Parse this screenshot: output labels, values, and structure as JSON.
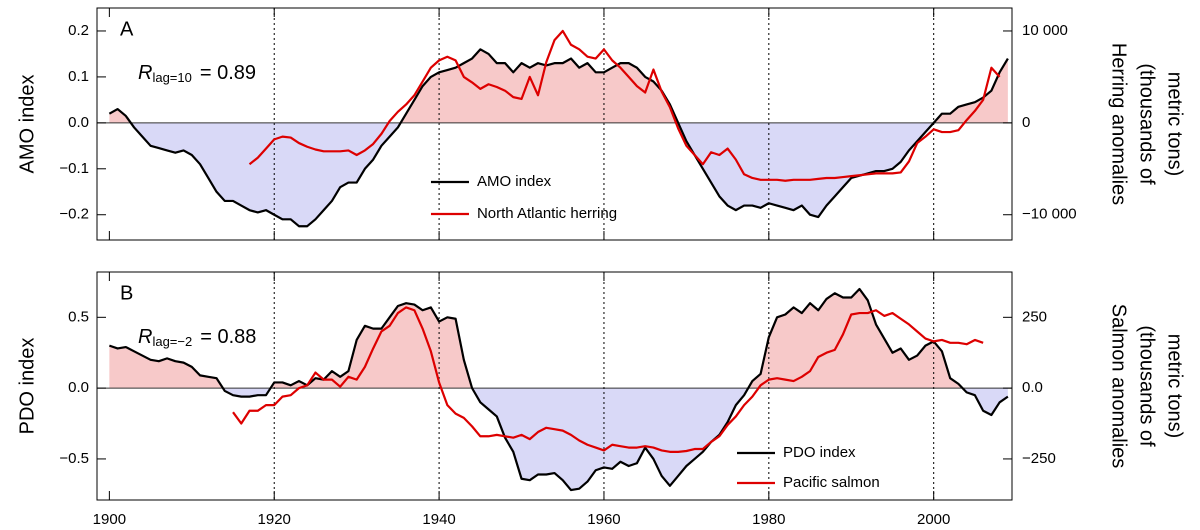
{
  "chart_data": [
    {
      "type": "line",
      "panel_letter": "A",
      "annotation": {
        "symbol": "R",
        "subscript": "lag=10",
        "text": "= 0.89"
      },
      "ylabel": "AMO index",
      "y2label": [
        "Herring anomalies",
        "(thousands of",
        "metric tons)"
      ],
      "xlim": [
        1898.5,
        2009.5
      ],
      "xticks": [
        1900,
        1920,
        1940,
        1960,
        1980,
        2000
      ],
      "show_xtick_labels": false,
      "vlines": [
        1920,
        1940,
        1960,
        1980,
        2000
      ],
      "ylim": [
        -0.255,
        0.25
      ],
      "yticks": [
        {
          "value": -0.2,
          "label": "−0.2"
        },
        {
          "value": -0.1,
          "label": "−0.1"
        },
        {
          "value": 0,
          "label": "0.0"
        },
        0.1,
        0.2
      ],
      "y2lim": [
        -12750,
        12500
      ],
      "y2ticks": [
        {
          "value": -10000,
          "label": "−10 000"
        },
        0,
        {
          "value": 10000,
          "label": "10 000"
        }
      ],
      "fill_colors": {
        "positive": "#f7c9c9",
        "negative": "#d9d9f7"
      },
      "legend": "lower center",
      "series": [
        {
          "name": "AMO index",
          "color": "#000000",
          "fill": true,
          "x": [
            1900,
            1901,
            1902,
            1903,
            1904,
            1905,
            1906,
            1907,
            1908,
            1909,
            1910,
            1911,
            1912,
            1913,
            1914,
            1915,
            1916,
            1917,
            1918,
            1919,
            1920,
            1921,
            1922,
            1923,
            1924,
            1925,
            1926,
            1927,
            1928,
            1929,
            1930,
            1931,
            1932,
            1933,
            1934,
            1935,
            1936,
            1937,
            1938,
            1939,
            1940,
            1941,
            1942,
            1943,
            1944,
            1945,
            1946,
            1947,
            1948,
            1949,
            1950,
            1951,
            1952,
            1953,
            1954,
            1955,
            1956,
            1957,
            1958,
            1959,
            1960,
            1961,
            1962,
            1963,
            1964,
            1965,
            1966,
            1967,
            1968,
            1969,
            1970,
            1971,
            1972,
            1973,
            1974,
            1975,
            1976,
            1977,
            1978,
            1979,
            1980,
            1981,
            1982,
            1983,
            1984,
            1985,
            1986,
            1987,
            1988,
            1989,
            1990,
            1991,
            1992,
            1993,
            1994,
            1995,
            1996,
            1997,
            1998,
            1999,
            2000,
            2001,
            2002,
            2003,
            2004,
            2005,
            2006,
            2007,
            2008,
            2009
          ],
          "values": [
            0.02,
            0.03,
            0.015,
            -0.01,
            -0.03,
            -0.05,
            -0.055,
            -0.06,
            -0.065,
            -0.06,
            -0.07,
            -0.09,
            -0.12,
            -0.15,
            -0.17,
            -0.17,
            -0.18,
            -0.19,
            -0.195,
            -0.19,
            -0.2,
            -0.21,
            -0.21,
            -0.225,
            -0.225,
            -0.21,
            -0.19,
            -0.17,
            -0.14,
            -0.13,
            -0.13,
            -0.1,
            -0.08,
            -0.05,
            -0.03,
            -0.01,
            0.02,
            0.05,
            0.08,
            0.1,
            0.11,
            0.115,
            0.12,
            0.13,
            0.14,
            0.16,
            0.15,
            0.13,
            0.13,
            0.11,
            0.13,
            0.12,
            0.13,
            0.125,
            0.13,
            0.13,
            0.14,
            0.12,
            0.13,
            0.11,
            0.11,
            0.12,
            0.13,
            0.13,
            0.12,
            0.1,
            0.09,
            0.07,
            0.04,
            0.0,
            -0.04,
            -0.07,
            -0.1,
            -0.13,
            -0.16,
            -0.18,
            -0.19,
            -0.18,
            -0.18,
            -0.185,
            -0.175,
            -0.18,
            -0.185,
            -0.19,
            -0.18,
            -0.2,
            -0.205,
            -0.18,
            -0.16,
            -0.14,
            -0.12,
            -0.115,
            -0.11,
            -0.105,
            -0.105,
            -0.1,
            -0.085,
            -0.06,
            -0.04,
            -0.02,
            0.0,
            0.02,
            0.02,
            0.035,
            0.04,
            0.045,
            0.055,
            0.07,
            0.11,
            0.14
          ]
        },
        {
          "name": "North Atlantic herring",
          "color": "#dd0000",
          "axis": "y2",
          "x": [
            1917,
            1918,
            1919,
            1920,
            1921,
            1922,
            1923,
            1924,
            1925,
            1926,
            1927,
            1928,
            1929,
            1930,
            1931,
            1932,
            1933,
            1934,
            1935,
            1936,
            1937,
            1938,
            1939,
            1940,
            1941,
            1942,
            1943,
            1944,
            1945,
            1946,
            1947,
            1948,
            1949,
            1950,
            1951,
            1952,
            1953,
            1954,
            1955,
            1956,
            1957,
            1958,
            1959,
            1960,
            1961,
            1962,
            1963,
            1964,
            1965,
            1966,
            1967,
            1968,
            1969,
            1970,
            1971,
            1972,
            1973,
            1974,
            1975,
            1976,
            1977,
            1978,
            1979,
            1980,
            1981,
            1982,
            1983,
            1984,
            1985,
            1986,
            1987,
            1988,
            1989,
            1990,
            1991,
            1992,
            1993,
            1994,
            1995,
            1996,
            1997,
            1998,
            1999,
            2000,
            2001,
            2002,
            2003,
            2004,
            2005,
            2006,
            2007,
            2008
          ],
          "values": [
            -4500,
            -3800,
            -2800,
            -1800,
            -1500,
            -1600,
            -2200,
            -2600,
            -2900,
            -3100,
            -3100,
            -3100,
            -3000,
            -3500,
            -3000,
            -2300,
            -1200,
            200,
            1200,
            2000,
            3000,
            4500,
            6000,
            6800,
            7200,
            6800,
            5000,
            4400,
            3700,
            4200,
            3900,
            3500,
            2800,
            2600,
            5000,
            3000,
            6600,
            9000,
            10000,
            8500,
            8000,
            7200,
            7000,
            8000,
            6800,
            6000,
            5000,
            4000,
            3300,
            5800,
            3400,
            1700,
            -600,
            -2500,
            -3500,
            -4500,
            -3200,
            -3500,
            -2800,
            -4000,
            -5600,
            -6000,
            -6200,
            -6200,
            -6200,
            -6300,
            -6200,
            -6200,
            -6200,
            -6100,
            -6000,
            -6000,
            -5900,
            -5800,
            -5700,
            -5600,
            -5500,
            -5500,
            -5500,
            -5400,
            -4200,
            -2200,
            -1500,
            -700,
            -1000,
            -1000,
            -800,
            300,
            1300,
            2500,
            6000,
            5000
          ]
        }
      ]
    },
    {
      "type": "line",
      "panel_letter": "B",
      "annotation": {
        "symbol": "R",
        "subscript": "lag=−2",
        "text": "= 0.88"
      },
      "ylabel": "PDO index",
      "y2label": [
        "Salmon anomalies",
        "(thousands of",
        "metric tons)"
      ],
      "xlim": [
        1898.5,
        2009.5
      ],
      "xticks": [
        1900,
        1920,
        1940,
        1960,
        1980,
        2000
      ],
      "show_xtick_labels": true,
      "vlines": [
        1920,
        1940,
        1960,
        1980,
        2000
      ],
      "ylim": [
        -0.79,
        0.82
      ],
      "yticks": [
        {
          "value": -0.5,
          "label": "−0.5"
        },
        {
          "value": 0,
          "label": "0.0"
        },
        0.5
      ],
      "y2lim": [
        -395,
        410
      ],
      "y2ticks": [
        {
          "value": -250,
          "label": "−250"
        },
        {
          "value": 0,
          "label": "0.0"
        },
        250
      ],
      "fill_colors": {
        "positive": "#f7c9c9",
        "negative": "#d9d9f7"
      },
      "legend": "lower right",
      "series": [
        {
          "name": "PDO index",
          "color": "#000000",
          "fill": true,
          "x": [
            1900,
            1901,
            1902,
            1903,
            1904,
            1905,
            1906,
            1907,
            1908,
            1909,
            1910,
            1911,
            1912,
            1913,
            1914,
            1915,
            1916,
            1917,
            1918,
            1919,
            1920,
            1921,
            1922,
            1923,
            1924,
            1925,
            1926,
            1927,
            1928,
            1929,
            1930,
            1931,
            1932,
            1933,
            1934,
            1935,
            1936,
            1937,
            1938,
            1939,
            1940,
            1941,
            1942,
            1943,
            1944,
            1945,
            1946,
            1947,
            1948,
            1949,
            1950,
            1951,
            1952,
            1953,
            1954,
            1955,
            1956,
            1957,
            1958,
            1959,
            1960,
            1961,
            1962,
            1963,
            1964,
            1965,
            1966,
            1967,
            1968,
            1969,
            1970,
            1971,
            1972,
            1973,
            1974,
            1975,
            1976,
            1977,
            1978,
            1979,
            1980,
            1981,
            1982,
            1983,
            1984,
            1985,
            1986,
            1987,
            1988,
            1989,
            1990,
            1991,
            1992,
            1993,
            1994,
            1995,
            1996,
            1997,
            1998,
            1999,
            2000,
            2001,
            2002,
            2003,
            2004,
            2005,
            2006,
            2007,
            2008,
            2009
          ],
          "values": [
            0.3,
            0.28,
            0.29,
            0.26,
            0.23,
            0.2,
            0.19,
            0.21,
            0.19,
            0.18,
            0.15,
            0.09,
            0.08,
            0.07,
            -0.02,
            -0.05,
            -0.06,
            -0.06,
            -0.05,
            -0.05,
            0.04,
            0.04,
            0.02,
            0.05,
            0.02,
            0.07,
            0.06,
            0.12,
            0.08,
            0.12,
            0.34,
            0.44,
            0.42,
            0.42,
            0.5,
            0.58,
            0.6,
            0.59,
            0.55,
            0.57,
            0.47,
            0.5,
            0.49,
            0.2,
            0.0,
            -0.1,
            -0.15,
            -0.2,
            -0.35,
            -0.45,
            -0.64,
            -0.65,
            -0.61,
            -0.61,
            -0.6,
            -0.65,
            -0.72,
            -0.71,
            -0.66,
            -0.58,
            -0.56,
            -0.57,
            -0.52,
            -0.55,
            -0.53,
            -0.42,
            -0.5,
            -0.62,
            -0.69,
            -0.62,
            -0.55,
            -0.5,
            -0.45,
            -0.38,
            -0.33,
            -0.24,
            -0.12,
            -0.05,
            0.05,
            0.1,
            0.36,
            0.5,
            0.52,
            0.57,
            0.53,
            0.6,
            0.55,
            0.63,
            0.67,
            0.64,
            0.64,
            0.7,
            0.62,
            0.45,
            0.35,
            0.25,
            0.28,
            0.2,
            0.23,
            0.3,
            0.33,
            0.26,
            0.07,
            0.03,
            -0.03,
            -0.05,
            -0.16,
            -0.19,
            -0.1,
            -0.06
          ]
        },
        {
          "name": "Pacific salmon",
          "color": "#dd0000",
          "axis": "y2",
          "x": [
            1915,
            1916,
            1917,
            1918,
            1919,
            1920,
            1921,
            1922,
            1923,
            1924,
            1925,
            1926,
            1927,
            1928,
            1929,
            1930,
            1931,
            1932,
            1933,
            1934,
            1935,
            1936,
            1937,
            1938,
            1939,
            1940,
            1941,
            1942,
            1943,
            1944,
            1945,
            1946,
            1947,
            1948,
            1949,
            1950,
            1951,
            1952,
            1953,
            1954,
            1955,
            1956,
            1957,
            1958,
            1959,
            1960,
            1961,
            1962,
            1963,
            1964,
            1965,
            1966,
            1967,
            1968,
            1969,
            1970,
            1971,
            1972,
            1973,
            1974,
            1975,
            1976,
            1977,
            1978,
            1979,
            1980,
            1981,
            1982,
            1983,
            1984,
            1985,
            1986,
            1987,
            1988,
            1989,
            1990,
            1991,
            1992,
            1993,
            1994,
            1995,
            1996,
            1997,
            1998,
            1999,
            2000,
            2001,
            2002,
            2003,
            2004,
            2005,
            2006
          ],
          "values": [
            -85,
            -125,
            -80,
            -80,
            -60,
            -60,
            -30,
            -25,
            0,
            10,
            55,
            30,
            30,
            5,
            40,
            30,
            75,
            140,
            200,
            220,
            265,
            285,
            275,
            210,
            130,
            20,
            -60,
            -90,
            -105,
            -135,
            -170,
            -170,
            -165,
            -170,
            -175,
            -165,
            -180,
            -155,
            -140,
            -145,
            -150,
            -165,
            -185,
            -200,
            -210,
            -220,
            -200,
            -205,
            -210,
            -210,
            -205,
            -210,
            -220,
            -225,
            -225,
            -222,
            -215,
            -215,
            -190,
            -170,
            -130,
            -100,
            -60,
            -30,
            10,
            30,
            35,
            30,
            25,
            40,
            60,
            110,
            125,
            135,
            190,
            260,
            265,
            265,
            275,
            255,
            265,
            245,
            225,
            200,
            175,
            165,
            170,
            160,
            160,
            155,
            170,
            160
          ]
        }
      ]
    }
  ]
}
